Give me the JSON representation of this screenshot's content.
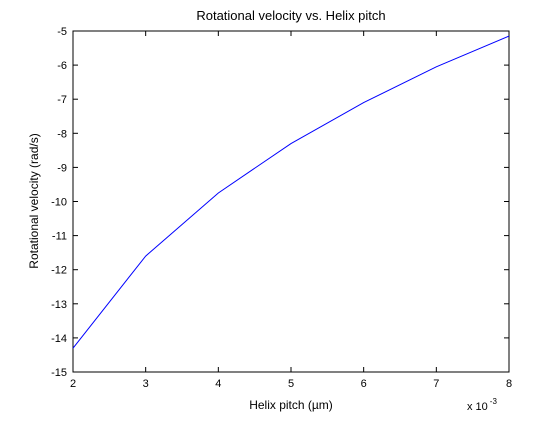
{
  "chart_data": {
    "type": "line",
    "title": "Rotational velocity vs. Helix pitch",
    "xlabel": "Helix pitch (µm)",
    "ylabel": "Rotational velocity (rad/s)",
    "x_exponent_label": "x 10",
    "x_exponent_power": "-3",
    "xlim": [
      2,
      8
    ],
    "ylim": [
      -15,
      -5
    ],
    "xticks": [
      2,
      3,
      4,
      5,
      6,
      7,
      8
    ],
    "yticks": [
      -15,
      -14,
      -13,
      -12,
      -11,
      -10,
      -9,
      -8,
      -7,
      -6,
      -5
    ],
    "grid": false,
    "legend": "none",
    "series": [
      {
        "color": "#0000ff",
        "x": [
          2,
          3,
          4,
          5,
          6,
          7,
          8
        ],
        "y": [
          -14.3,
          -11.6,
          -9.75,
          -8.3,
          -7.1,
          -6.05,
          -5.15
        ]
      }
    ]
  }
}
